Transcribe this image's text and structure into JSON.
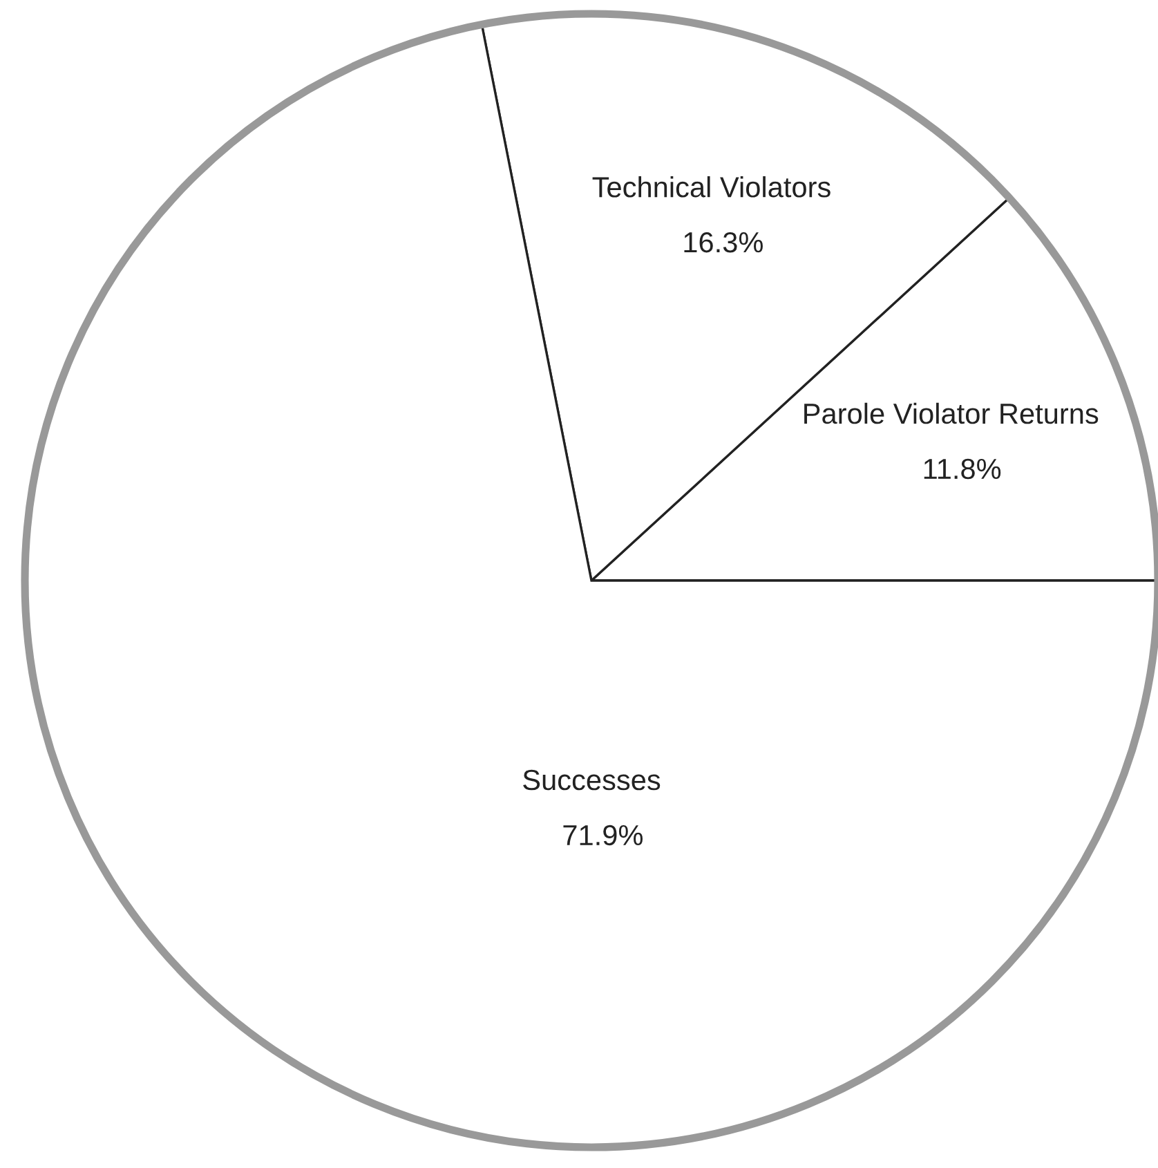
{
  "chart_data": {
    "type": "pie",
    "categories": [
      "Parole Violator Returns",
      "Technical Violators",
      "Successes"
    ],
    "values": [
      11.8,
      16.3,
      71.9
    ],
    "value_labels": [
      "11.8%",
      "16.3%",
      "71.9%"
    ],
    "colors": [
      "#ffffff",
      "#ffffff",
      "#ffffff"
    ]
  }
}
